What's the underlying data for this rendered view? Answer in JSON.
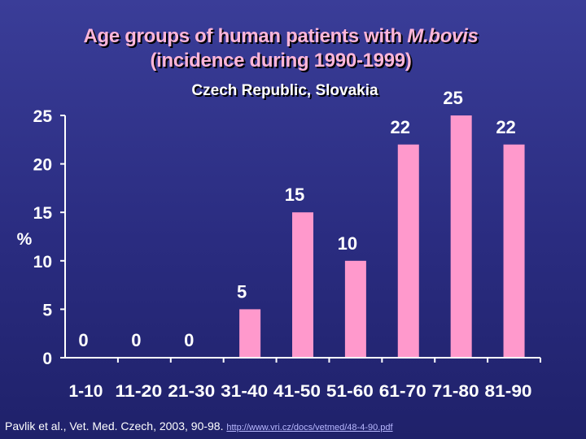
{
  "slide": {
    "title_line1_prefix": "Age groups of human patients with ",
    "title_line1_emph": "M.bovis",
    "title_line2": "(incidence during 1990-1999)",
    "subtitle": "Czech Republic,  Slovakia",
    "footer_text": "Pavlik et al., Vet. Med. Czech, 2003, 90-98. ",
    "footer_link": "http://www.vri.cz/docs/vetmed/48-4-90.pdf"
  },
  "colors": {
    "bar": "#ff99cc",
    "axis": "#ffffff",
    "title": "#ffb6d9"
  },
  "chart_data": {
    "type": "bar",
    "title": "Age groups of human patients with M.bovis (incidence during 1990-1999)",
    "subtitle": "Czech Republic,  Slovakia",
    "xlabel": "",
    "ylabel": "%",
    "categories": [
      "1-10",
      "11-20",
      "21-30",
      "31-40",
      "41-50",
      "51-60",
      "61-70",
      "71-80",
      "81-90"
    ],
    "values": [
      0,
      0,
      0,
      5,
      15,
      10,
      22,
      25,
      22
    ],
    "data_labels": [
      "0",
      "0",
      "0",
      "5",
      "15",
      "10",
      "22",
      "25",
      "22"
    ],
    "yticks": [
      "0",
      "5",
      "10",
      "15",
      "20",
      "25"
    ],
    "ylim": [
      0,
      25
    ],
    "grid": false,
    "legend": "none"
  }
}
